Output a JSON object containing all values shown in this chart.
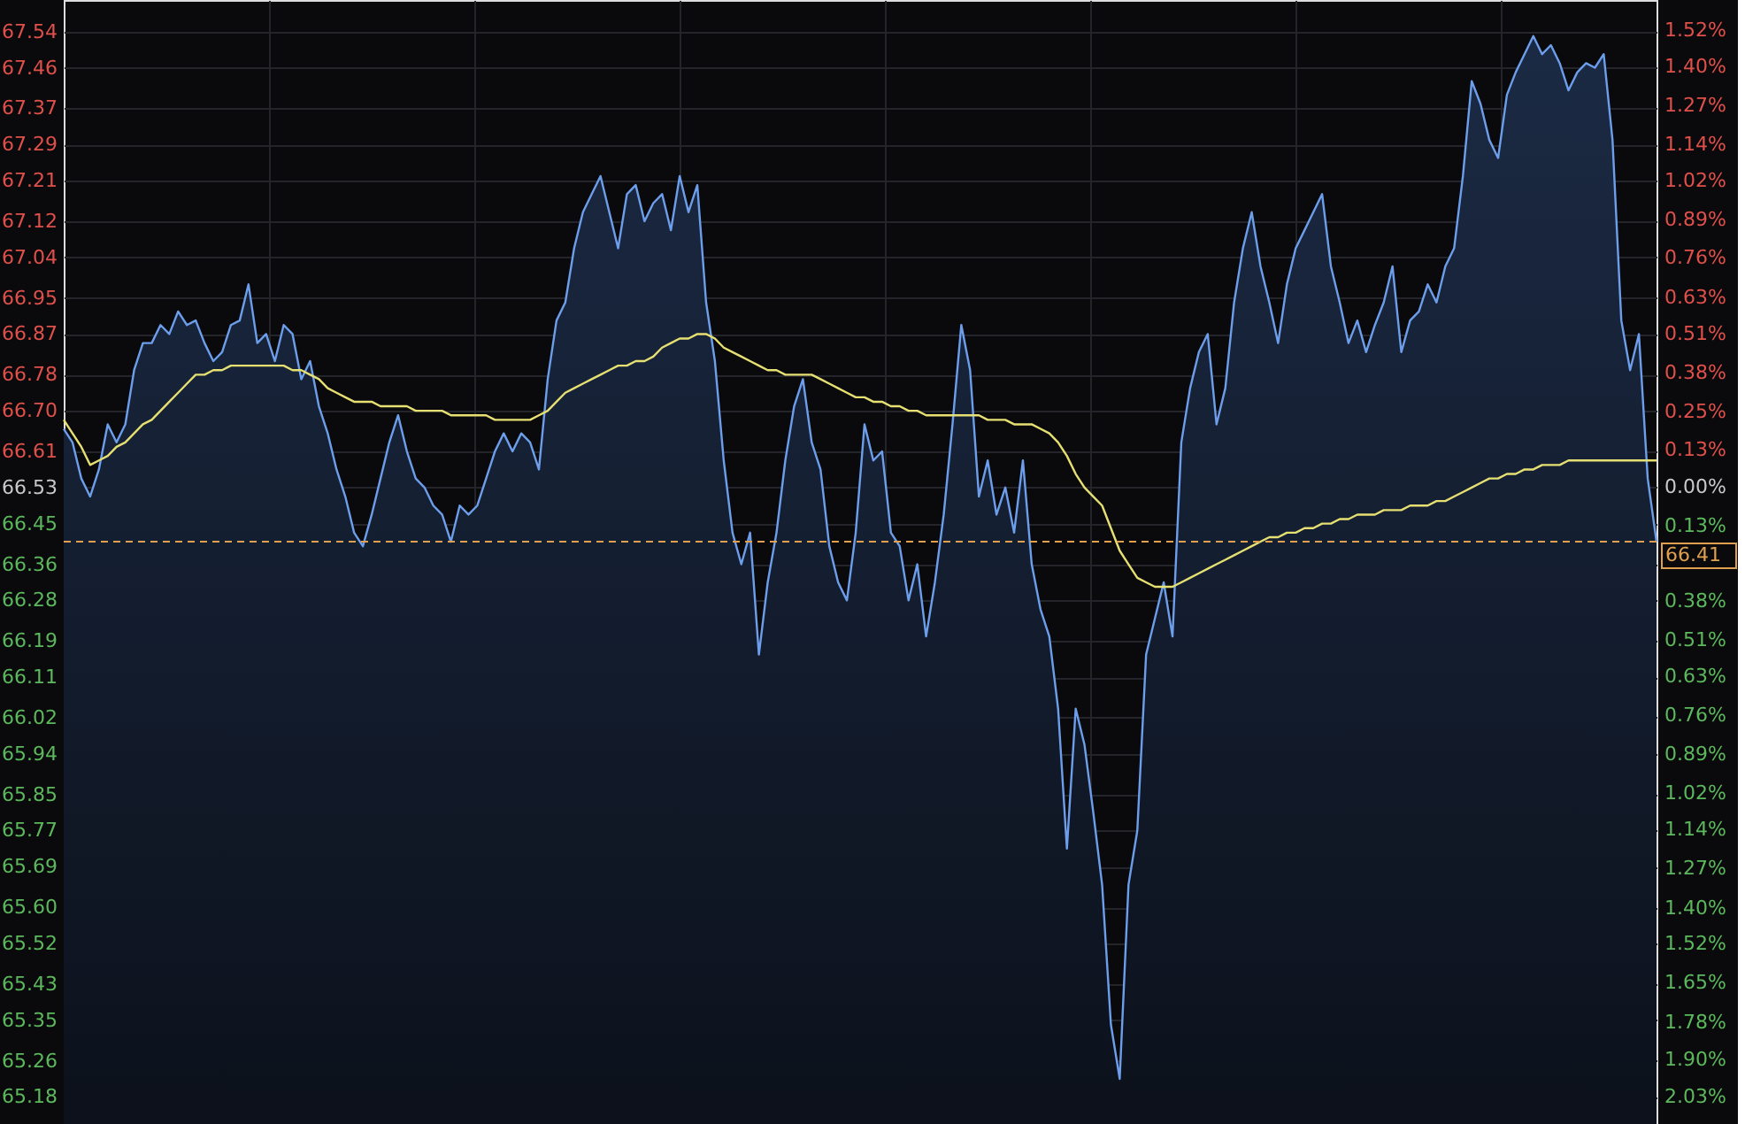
{
  "chart_data": {
    "type": "area",
    "categories": [
      null,
      null,
      null,
      null,
      null,
      null,
      null,
      null,
      null,
      null,
      null,
      null,
      null,
      null,
      null,
      null,
      null,
      null,
      null,
      null,
      null,
      null,
      null,
      null,
      null,
      null,
      null,
      null,
      null,
      null,
      null,
      null,
      null,
      null,
      null,
      null,
      null,
      null,
      null,
      null,
      null,
      null,
      null,
      null,
      null,
      null,
      null,
      null,
      null,
      null,
      null,
      null,
      null,
      null,
      null,
      null,
      null,
      null,
      null,
      null,
      null,
      null,
      null,
      null,
      null,
      null,
      null,
      null,
      null,
      null,
      null,
      null,
      null,
      null,
      null,
      null,
      null,
      null,
      null,
      null,
      null,
      null,
      null,
      null,
      null,
      null,
      null,
      null,
      null,
      null,
      null,
      null,
      null,
      null,
      null,
      null,
      null,
      null,
      null,
      null,
      null,
      null,
      null,
      null,
      null,
      null,
      null,
      null,
      null,
      null,
      null,
      null,
      null,
      null,
      null,
      null,
      null,
      null,
      null,
      null,
      null,
      null,
      null,
      null,
      null,
      null,
      null,
      null,
      null,
      null,
      null,
      null,
      null,
      null,
      null,
      null,
      null,
      null,
      null,
      null,
      null,
      null,
      null,
      null,
      null,
      null,
      null,
      null,
      null,
      null,
      null,
      null,
      null,
      null,
      null,
      null,
      null,
      null,
      null,
      null,
      null,
      null,
      null,
      null,
      null,
      null,
      null,
      null,
      null,
      null,
      null,
      null,
      null,
      null,
      null,
      null,
      null,
      null,
      null,
      null,
      null,
      null
    ],
    "series": [
      {
        "color": "#6d9eeb",
        "values": [
          66.66,
          66.63,
          66.55,
          66.51,
          66.57,
          66.67,
          66.63,
          66.67,
          66.79,
          66.85,
          66.85,
          66.89,
          66.87,
          66.92,
          66.89,
          66.9,
          66.85,
          66.81,
          66.83,
          66.89,
          66.9,
          66.98,
          66.85,
          66.87,
          66.81,
          66.89,
          66.87,
          66.77,
          66.81,
          66.71,
          66.65,
          66.57,
          66.51,
          66.43,
          66.4,
          66.47,
          66.55,
          66.63,
          66.69,
          66.61,
          66.55,
          66.53,
          66.49,
          66.47,
          66.41,
          66.49,
          66.47,
          66.49,
          66.55,
          66.61,
          66.65,
          66.61,
          66.65,
          66.63,
          66.57,
          66.77,
          66.9,
          66.94,
          67.06,
          67.14,
          67.18,
          67.22,
          67.14,
          67.06,
          67.18,
          67.2,
          67.12,
          67.16,
          67.18,
          67.1,
          67.22,
          67.14,
          67.2,
          66.94,
          66.81,
          66.59,
          66.43,
          66.36,
          66.43,
          66.16,
          66.32,
          66.43,
          66.59,
          66.71,
          66.77,
          66.63,
          66.57,
          66.4,
          66.32,
          66.28,
          66.43,
          66.67,
          66.59,
          66.61,
          66.43,
          66.4,
          66.28,
          66.36,
          66.2,
          66.32,
          66.47,
          66.67,
          66.89,
          66.79,
          66.51,
          66.59,
          66.47,
          66.53,
          66.43,
          66.59,
          66.36,
          66.26,
          66.2,
          66.04,
          65.73,
          66.04,
          65.96,
          65.81,
          65.65,
          65.34,
          65.22,
          65.65,
          65.77,
          66.16,
          66.24,
          66.32,
          66.2,
          66.63,
          66.75,
          66.83,
          66.87,
          66.67,
          66.75,
          66.94,
          67.06,
          67.14,
          67.02,
          66.94,
          66.85,
          66.98,
          67.06,
          67.1,
          67.14,
          67.18,
          67.02,
          66.94,
          66.85,
          66.9,
          66.83,
          66.89,
          66.94,
          67.02,
          66.83,
          66.9,
          66.92,
          66.98,
          66.94,
          67.02,
          67.06,
          67.22,
          67.43,
          67.38,
          67.3,
          67.26,
          67.4,
          67.45,
          67.49,
          67.53,
          67.49,
          67.51,
          67.47,
          67.41,
          67.45,
          67.47,
          67.46,
          67.49,
          67.3,
          66.9,
          66.79,
          66.87,
          66.55,
          66.41
        ]
      },
      {
        "type": "line",
        "color": "#e6df72",
        "values": [
          66.68,
          66.65,
          66.62,
          66.58,
          66.59,
          66.6,
          66.62,
          66.63,
          66.65,
          66.67,
          66.68,
          66.7,
          66.72,
          66.74,
          66.76,
          66.78,
          66.78,
          66.79,
          66.79,
          66.8,
          66.8,
          66.8,
          66.8,
          66.8,
          66.8,
          66.8,
          66.79,
          66.79,
          66.78,
          66.77,
          66.75,
          66.74,
          66.73,
          66.72,
          66.72,
          66.72,
          66.71,
          66.71,
          66.71,
          66.71,
          66.7,
          66.7,
          66.7,
          66.7,
          66.69,
          66.69,
          66.69,
          66.69,
          66.69,
          66.68,
          66.68,
          66.68,
          66.68,
          66.68,
          66.69,
          66.7,
          66.72,
          66.74,
          66.75,
          66.76,
          66.77,
          66.78,
          66.79,
          66.8,
          66.8,
          66.81,
          66.81,
          66.82,
          66.84,
          66.85,
          66.86,
          66.86,
          66.87,
          66.87,
          66.86,
          66.84,
          66.83,
          66.82,
          66.81,
          66.8,
          66.79,
          66.79,
          66.78,
          66.78,
          66.78,
          66.78,
          66.77,
          66.76,
          66.75,
          66.74,
          66.73,
          66.73,
          66.72,
          66.72,
          66.71,
          66.71,
          66.7,
          66.7,
          66.69,
          66.69,
          66.69,
          66.69,
          66.69,
          66.69,
          66.69,
          66.68,
          66.68,
          66.68,
          66.67,
          66.67,
          66.67,
          66.66,
          66.65,
          66.63,
          66.6,
          66.56,
          66.53,
          66.51,
          66.49,
          66.44,
          66.39,
          66.36,
          66.33,
          66.32,
          66.31,
          66.31,
          66.31,
          66.32,
          66.33,
          66.34,
          66.35,
          66.36,
          66.37,
          66.38,
          66.39,
          66.4,
          66.41,
          66.42,
          66.42,
          66.43,
          66.43,
          66.44,
          66.44,
          66.45,
          66.45,
          66.46,
          66.46,
          66.47,
          66.47,
          66.47,
          66.48,
          66.48,
          66.48,
          66.49,
          66.49,
          66.49,
          66.5,
          66.5,
          66.51,
          66.52,
          66.53,
          66.54,
          66.55,
          66.55,
          66.56,
          66.56,
          66.57,
          66.57,
          66.58,
          66.58,
          66.58,
          66.59,
          66.59,
          66.59,
          66.59,
          66.59,
          66.59,
          66.59,
          66.59,
          66.59,
          66.59,
          66.59
        ]
      }
    ],
    "ylim": [
      65.12,
      67.61
    ],
    "yticks": [
      67.54,
      67.46,
      67.37,
      67.29,
      67.21,
      67.12,
      67.04,
      66.95,
      66.87,
      66.78,
      {
        "value": 66.7,
        "label": "66.70"
      },
      66.61,
      66.53,
      66.45,
      66.36,
      66.28,
      66.19,
      66.11,
      66.02,
      65.94,
      65.85,
      65.77,
      65.69,
      {
        "value": 65.6,
        "label": "65.60"
      },
      65.52,
      65.43,
      65.35,
      65.26,
      65.18
    ],
    "y2lim": [
      -2.12,
      1.62
    ],
    "y2ticks": [
      {
        "value": 1.52,
        "label": "1.52%"
      },
      {
        "value": 1.4,
        "label": "1.40%"
      },
      {
        "value": 1.27,
        "label": "1.27%"
      },
      {
        "value": 1.14,
        "label": "1.14%"
      },
      {
        "value": 1.02,
        "label": "1.02%"
      },
      {
        "value": 0.89,
        "label": "0.89%"
      },
      {
        "value": 0.764,
        "label": "0.76%"
      },
      {
        "value": 0.63,
        "label": "0.63%"
      },
      {
        "value": 0.51,
        "label": "0.51%"
      },
      {
        "value": 0.38,
        "label": "0.38%"
      },
      {
        "value": 0.25,
        "label": "0.25%"
      },
      {
        "value": 0.125,
        "label": "0.13%"
      },
      {
        "value": 0,
        "label": "0.00%"
      },
      {
        "value": -0.13,
        "label": "0.13%"
      },
      {
        "value": -0.38,
        "label": "0.38%"
      },
      {
        "value": -0.51,
        "label": "0.51%"
      },
      {
        "value": -0.63,
        "label": "0.63%"
      },
      {
        "value": -0.76,
        "label": "0.76%"
      },
      {
        "value": -0.89,
        "label": "0.89%"
      },
      {
        "value": -1.02,
        "label": "1.02%"
      },
      {
        "value": -1.14,
        "label": "1.14%"
      },
      {
        "value": -1.27,
        "label": "1.27%"
      },
      {
        "value": -1.4,
        "label": "1.40%"
      },
      {
        "value": -1.52,
        "label": "1.52%"
      },
      {
        "value": -1.65,
        "label": "1.65%"
      },
      {
        "value": -1.78,
        "label": "1.78%"
      },
      {
        "value": -1.904,
        "label": "1.90%"
      },
      {
        "value": -2.03,
        "label": "2.03%"
      }
    ],
    "ref_lines": [
      {
        "axis": "y",
        "value": 66.41,
        "label": "66.41",
        "color": "#e0a050",
        "line_style": "dashed"
      }
    ],
    "grid": true,
    "tick_labels": "y"
  }
}
